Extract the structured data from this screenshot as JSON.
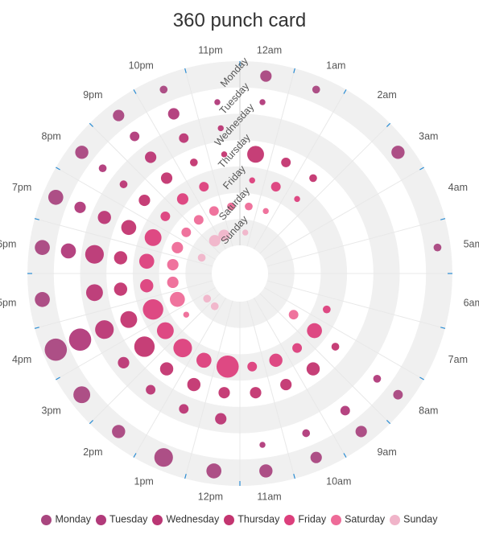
{
  "title": "360 punch card",
  "colors": [
    "#a9467f",
    "#b13a7a",
    "#ba3674",
    "#c33570",
    "#dc3f7c",
    "#ee6b98",
    "#f0b4c9"
  ],
  "chart_data": {
    "type": "scatter",
    "subtype": "polar punch card",
    "title": "360 punch card",
    "angle_categories": [
      "12am",
      "1am",
      "2am",
      "3am",
      "4am",
      "5am",
      "6am",
      "7am",
      "8am",
      "9am",
      "10am",
      "11am",
      "12pm",
      "1pm",
      "2pm",
      "3pm",
      "4pm",
      "5pm",
      "6pm",
      "7pm",
      "8pm",
      "9pm",
      "10pm",
      "11pm"
    ],
    "radius_categories": [
      "Sunday",
      "Saturday",
      "Friday",
      "Thursday",
      "Wednesday",
      "Tuesday",
      "Monday"
    ],
    "legend": [
      "Monday",
      "Tuesday",
      "Wednesday",
      "Thursday",
      "Friday",
      "Saturday",
      "Sunday"
    ],
    "legend_position": "bottom",
    "series": [
      {
        "name": "Monday",
        "values": [
          4,
          2,
          0,
          5,
          0,
          2,
          0,
          0,
          3,
          4,
          4,
          5,
          6,
          8,
          5,
          7,
          10,
          6,
          6,
          6,
          5,
          4,
          2,
          0
        ]
      },
      {
        "name": "Tuesday",
        "values": [
          1,
          0,
          0,
          0,
          0,
          0,
          0,
          0,
          2,
          3,
          2,
          1,
          0,
          0,
          0,
          0,
          10,
          0,
          6,
          4,
          2,
          3,
          4,
          1
        ]
      },
      {
        "name": "Wednesday",
        "values": [
          0,
          0,
          0,
          0,
          0,
          0,
          0,
          0,
          0,
          0,
          0,
          0,
          4,
          3,
          3,
          4,
          8,
          7,
          8,
          5,
          2,
          4,
          3,
          1
        ]
      },
      {
        "name": "Thursday",
        "values": [
          7,
          3,
          2,
          0,
          0,
          0,
          0,
          0,
          2,
          5,
          4,
          4,
          4,
          5,
          5,
          9,
          7,
          5,
          5,
          6,
          4,
          4,
          2,
          1
        ]
      },
      {
        "name": "Friday",
        "values": [
          1,
          3,
          1,
          0,
          0,
          0,
          0,
          2,
          6,
          3,
          5,
          3,
          10,
          6,
          8,
          7,
          9,
          5,
          6,
          7,
          3,
          4,
          3,
          0
        ]
      },
      {
        "name": "Saturday",
        "values": [
          2,
          1,
          0,
          0,
          0,
          0,
          0,
          0,
          3,
          0,
          0,
          0,
          0,
          0,
          0,
          1,
          6,
          4,
          4,
          4,
          3,
          3,
          3,
          2
        ]
      },
      {
        "name": "Sunday",
        "values": [
          1,
          0,
          0,
          0,
          0,
          0,
          0,
          0,
          0,
          0,
          0,
          0,
          0,
          0,
          2,
          2,
          0,
          0,
          0,
          2,
          0,
          4,
          4,
          0
        ]
      }
    ]
  }
}
